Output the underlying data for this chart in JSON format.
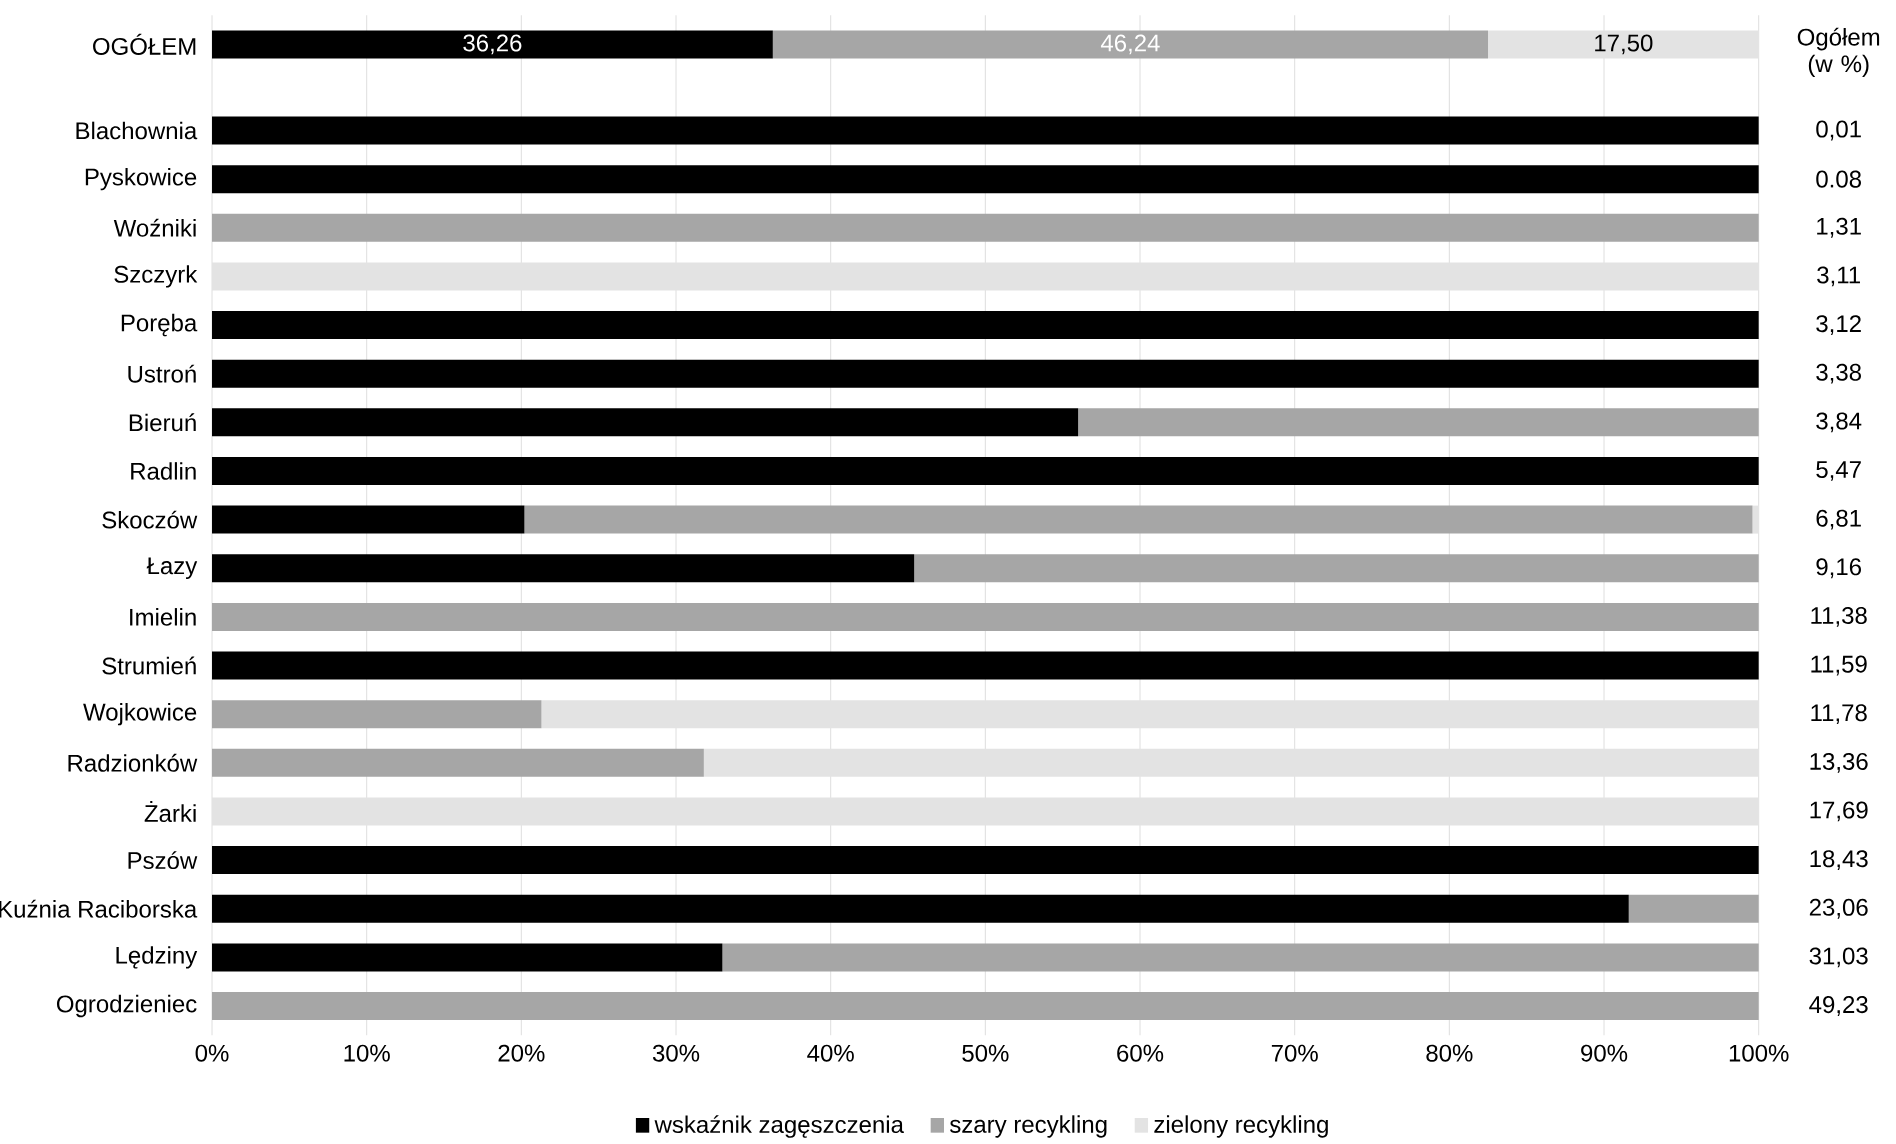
{
  "chart_data": {
    "type": "bar",
    "orientation": "horizontal",
    "stacked": true,
    "categories": [
      "OGÓŁEM",
      "Blachownia",
      "Pyskowice",
      "Woźniki",
      "Szczyrk",
      "Poręba",
      "Ustroń",
      "Bieruń",
      "Radlin",
      "Skoczów",
      "Łazy",
      "Imielin",
      "Strumień",
      "Wojkowice",
      "Radzionków",
      "Żarki",
      "Pszów",
      "Kuźnia Raciborska",
      "Lędziny",
      "Ogrodzieniec"
    ],
    "series": [
      {
        "name": "wskaźnik zagęszczenia",
        "color": "#000000",
        "values": [
          36.26,
          100,
          100,
          0,
          0,
          100,
          100,
          56.0,
          100,
          20.2,
          45.4,
          0,
          100,
          0,
          0,
          0,
          100,
          91.6,
          33.0,
          0
        ],
        "value_labels": [
          "36,26",
          null,
          null,
          null,
          null,
          null,
          null,
          null,
          null,
          null,
          null,
          null,
          null,
          null,
          null,
          null,
          null,
          null,
          null,
          null
        ]
      },
      {
        "name": "szary recykling",
        "color": "#a6a6a6",
        "values": [
          46.24,
          0,
          0,
          100,
          0,
          0,
          0,
          44.0,
          0,
          79.4,
          54.6,
          100,
          0,
          21.3,
          31.8,
          0,
          0,
          8.4,
          67.0,
          100
        ],
        "value_labels": [
          "46,24",
          null,
          null,
          null,
          null,
          null,
          null,
          null,
          null,
          null,
          null,
          null,
          null,
          null,
          null,
          null,
          null,
          null,
          null,
          null
        ]
      },
      {
        "name": "zielony recykling",
        "color": "#e3e3e3",
        "values": [
          17.5,
          0,
          0,
          0,
          100,
          0,
          0,
          0,
          0,
          0.4,
          0,
          0,
          0,
          78.7,
          68.2,
          100,
          0,
          0,
          0,
          0
        ],
        "value_labels": [
          "17,50",
          null,
          null,
          null,
          null,
          null,
          null,
          null,
          null,
          null,
          null,
          null,
          null,
          null,
          null,
          null,
          null,
          null,
          null,
          null
        ]
      }
    ],
    "xlim": [
      0,
      100
    ],
    "xticks": [
      {
        "value": 0,
        "label": "0%"
      },
      {
        "value": 10,
        "label": "10%"
      },
      {
        "value": 20,
        "label": "20%"
      },
      {
        "value": 30,
        "label": "30%"
      },
      {
        "value": 40,
        "label": "40%"
      },
      {
        "value": 50,
        "label": "50%"
      },
      {
        "value": 60,
        "label": "60%"
      },
      {
        "value": 70,
        "label": "70%"
      },
      {
        "value": 80,
        "label": "80%"
      },
      {
        "value": 90,
        "label": "90%"
      },
      {
        "value": 100,
        "label": "100%"
      }
    ],
    "y2label": "Ogółem (w %)",
    "annotations": [
      "0,01",
      "0.08",
      "1,31",
      "3,11",
      "3,12",
      "3,38",
      "3,84",
      "5,47",
      "6,81",
      "9,16",
      "11,38",
      "11,59",
      "11,78",
      "13,36",
      "17,69",
      "18,43",
      "23,06",
      "31,03",
      "49,23"
    ],
    "grid": "x",
    "legend": "bottom"
  }
}
